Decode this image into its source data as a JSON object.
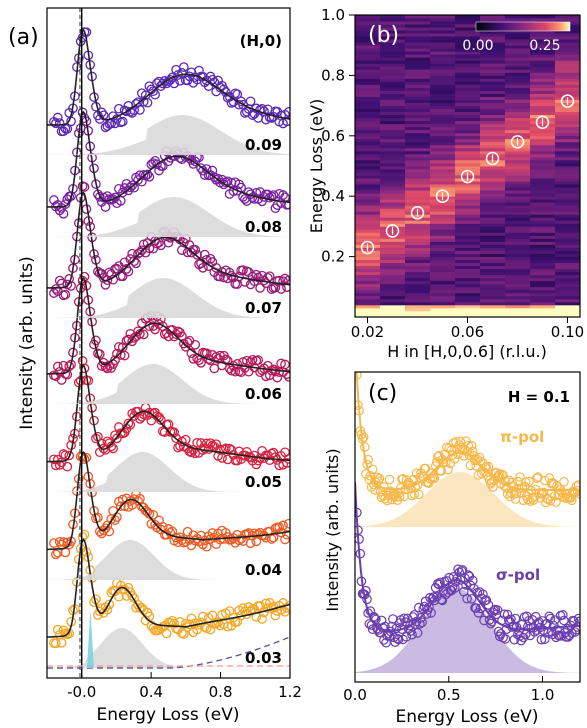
{
  "chart_data": [
    {
      "panel": "(a)",
      "type": "line",
      "corner_label": "(H,0)",
      "xlabel": "Energy Loss (eV)",
      "ylabel": "Intensity (arb. units)",
      "xlim": [
        -0.2,
        1.2
      ],
      "xticks": [
        "-0.0",
        "0.4",
        "0.8",
        "1.2"
      ],
      "series": [
        {
          "name": "0.03",
          "color": "#f5a623",
          "magnon_peak_eV": 0.23
        },
        {
          "name": "0.04",
          "color": "#ee5a24",
          "magnon_peak_eV": 0.28
        },
        {
          "name": "0.05",
          "color": "#d6223f",
          "magnon_peak_eV": 0.35
        },
        {
          "name": "0.06",
          "color": "#b8185a",
          "magnon_peak_eV": 0.41
        },
        {
          "name": "0.07",
          "color": "#991a78",
          "magnon_peak_eV": 0.47
        },
        {
          "name": "0.08",
          "color": "#7a1fa2",
          "magnon_peak_eV": 0.53
        },
        {
          "name": "0.09",
          "color": "#5b28b5",
          "magnon_peak_eV": 0.58
        }
      ]
    },
    {
      "panel": "(b)",
      "type": "heatmap",
      "xlabel": "H in [H,0,0.6] (r.l.u.)",
      "ylabel": "Energy Loss (eV)",
      "xlim": [
        0.015,
        0.105
      ],
      "ylim": [
        0.0,
        1.0
      ],
      "xticks": [
        "0.02",
        "0.06",
        "0.10"
      ],
      "yticks": [
        "0.2",
        "0.4",
        "0.6",
        "0.8",
        "1.0"
      ],
      "colorbar_ticks": [
        "0.00",
        "0.25"
      ],
      "peak_H": [
        0.02,
        0.03,
        0.04,
        0.05,
        0.06,
        0.07,
        0.08,
        0.09,
        0.1
      ],
      "peak_energy_eV": [
        0.23,
        0.285,
        0.345,
        0.4,
        0.465,
        0.525,
        0.58,
        0.645,
        0.715
      ]
    },
    {
      "panel": "(c)",
      "type": "line",
      "corner_label": "H = 0.1",
      "xlabel": "Energy Loss (eV)",
      "ylabel": "Intensity (arb. units)",
      "xlim": [
        0.0,
        1.2
      ],
      "xticks": [
        "0.0",
        "0.5",
        "1.0"
      ],
      "series": [
        {
          "name": "π-pol",
          "color": "#f7b84b",
          "peak_eV": 0.56
        },
        {
          "name": "σ-pol",
          "color": "#6a3db0",
          "peak_eV": 0.54
        }
      ]
    }
  ]
}
